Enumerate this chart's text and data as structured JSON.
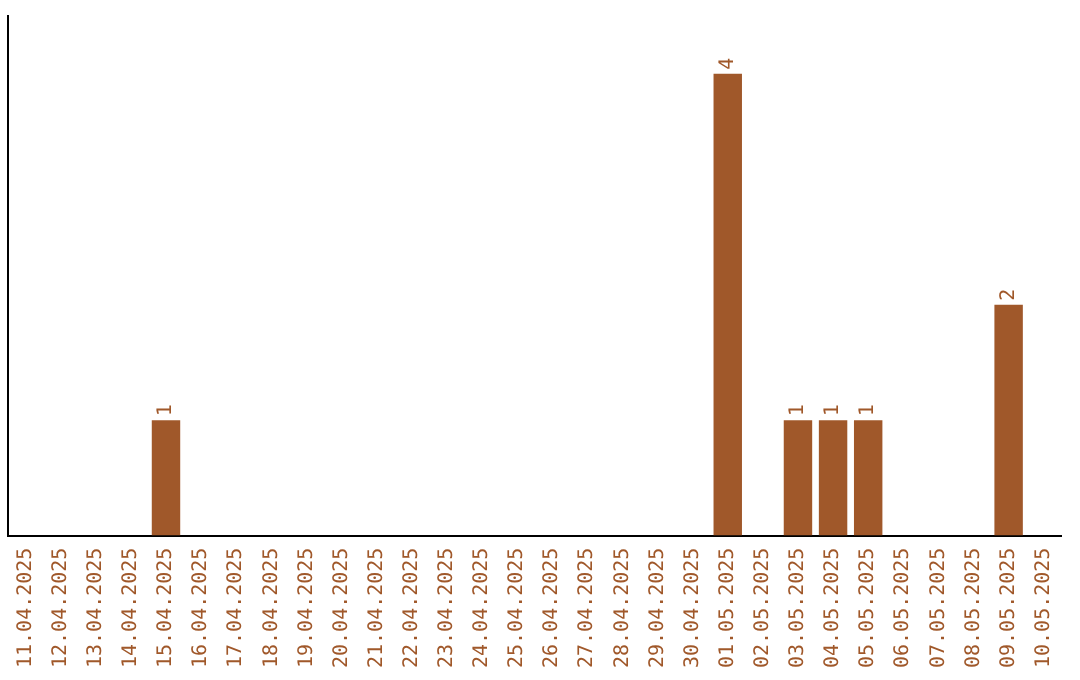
{
  "chart_data": {
    "type": "bar",
    "categories": [
      "11.04.2025",
      "12.04.2025",
      "13.04.2025",
      "14.04.2025",
      "15.04.2025",
      "16.04.2025",
      "17.04.2025",
      "18.04.2025",
      "19.04.2025",
      "20.04.2025",
      "21.04.2025",
      "22.04.2025",
      "23.04.2025",
      "24.04.2025",
      "25.04.2025",
      "26.04.2025",
      "27.04.2025",
      "28.04.2025",
      "29.04.2025",
      "30.04.2025",
      "01.05.2025",
      "02.05.2025",
      "03.05.2025",
      "04.05.2025",
      "05.05.2025",
      "06.05.2025",
      "07.05.2025",
      "08.05.2025",
      "09.05.2025",
      "10.05.2025"
    ],
    "values": [
      0,
      0,
      0,
      0,
      1,
      0,
      0,
      0,
      0,
      0,
      0,
      0,
      0,
      0,
      0,
      0,
      0,
      0,
      0,
      0,
      4,
      0,
      1,
      1,
      1,
      0,
      0,
      0,
      2,
      0
    ],
    "value_labels": [
      null,
      null,
      null,
      null,
      "1",
      null,
      null,
      null,
      null,
      null,
      null,
      null,
      null,
      null,
      null,
      null,
      null,
      null,
      null,
      null,
      "4",
      null,
      "1",
      "1",
      "1",
      null,
      null,
      null,
      "2",
      null
    ],
    "color": "#a0582a",
    "grid": false,
    "legend": false,
    "tick_labels": "x"
  }
}
